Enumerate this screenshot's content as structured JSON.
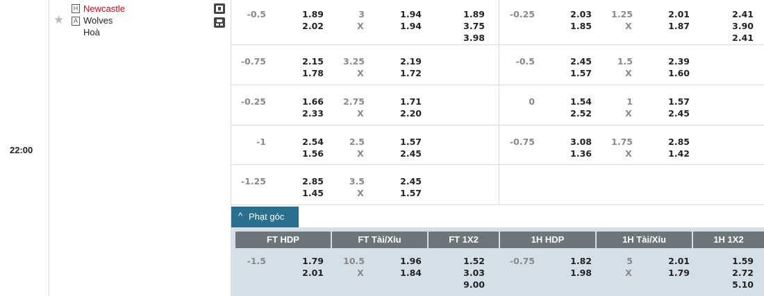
{
  "match": {
    "time": "22:00",
    "home_badge": "H",
    "home": "Newcastle",
    "away_badge": "A",
    "away": "Wolves",
    "draw": "Hoà"
  },
  "rows": [
    {
      "ft_hdp": [
        "-0.5",
        "1.89",
        "2.02"
      ],
      "ft_ou": [
        "3",
        "X",
        "1.94",
        "1.94"
      ],
      "ft_1x2": [
        "1.89",
        "3.75",
        "3.98"
      ],
      "h1_hdp": [
        "-0.25",
        "2.03",
        "1.85"
      ],
      "h1_ou": [
        "1.25",
        "X",
        "2.01",
        "1.87"
      ],
      "h1_1x2": [
        "2.41",
        "3.90",
        "2.41"
      ]
    },
    {
      "ft_hdp": [
        "-0.75",
        "2.15",
        "1.78"
      ],
      "ft_ou": [
        "3.25",
        "X",
        "2.19",
        "1.72"
      ],
      "h1_hdp": [
        "-0.5",
        "2.45",
        "1.57"
      ],
      "h1_ou": [
        "1.5",
        "X",
        "2.39",
        "1.60"
      ]
    },
    {
      "ft_hdp": [
        "-0.25",
        "1.66",
        "2.33"
      ],
      "ft_ou": [
        "2.75",
        "X",
        "1.71",
        "2.20"
      ],
      "h1_hdp": [
        "0",
        "1.54",
        "2.52"
      ],
      "h1_ou": [
        "1",
        "X",
        "1.57",
        "2.45"
      ]
    },
    {
      "ft_hdp": [
        "-1",
        "2.54",
        "1.56"
      ],
      "ft_ou": [
        "2.5",
        "X",
        "1.57",
        "2.45"
      ],
      "h1_hdp": [
        "-0.75",
        "3.08",
        "1.36"
      ],
      "h1_ou": [
        "1.75",
        "X",
        "2.85",
        "1.42"
      ]
    },
    {
      "ft_hdp": [
        "-1.25",
        "2.85",
        "1.45"
      ],
      "ft_ou": [
        "3.5",
        "X",
        "2.45",
        "1.57"
      ]
    }
  ],
  "corners": {
    "tab": "Phạt góc",
    "headers": [
      "FT HDP",
      "FT Tài/Xỉu",
      "FT 1X2",
      "1H HDP",
      "1H Tài/Xỉu",
      "1H 1X2"
    ],
    "row": {
      "ft_hdp": [
        "-1.5",
        "1.79",
        "2.01"
      ],
      "ft_ou": [
        "10.5",
        "X",
        "1.96",
        "1.84"
      ],
      "ft_1x2": [
        "1.52",
        "3.03",
        "9.00"
      ],
      "h1_hdp": [
        "-0.75",
        "1.82",
        "1.98"
      ],
      "h1_ou": [
        "5",
        "X",
        "2.01",
        "1.79"
      ],
      "h1_1x2": [
        "1.59",
        "2.72",
        "5.10"
      ]
    }
  }
}
